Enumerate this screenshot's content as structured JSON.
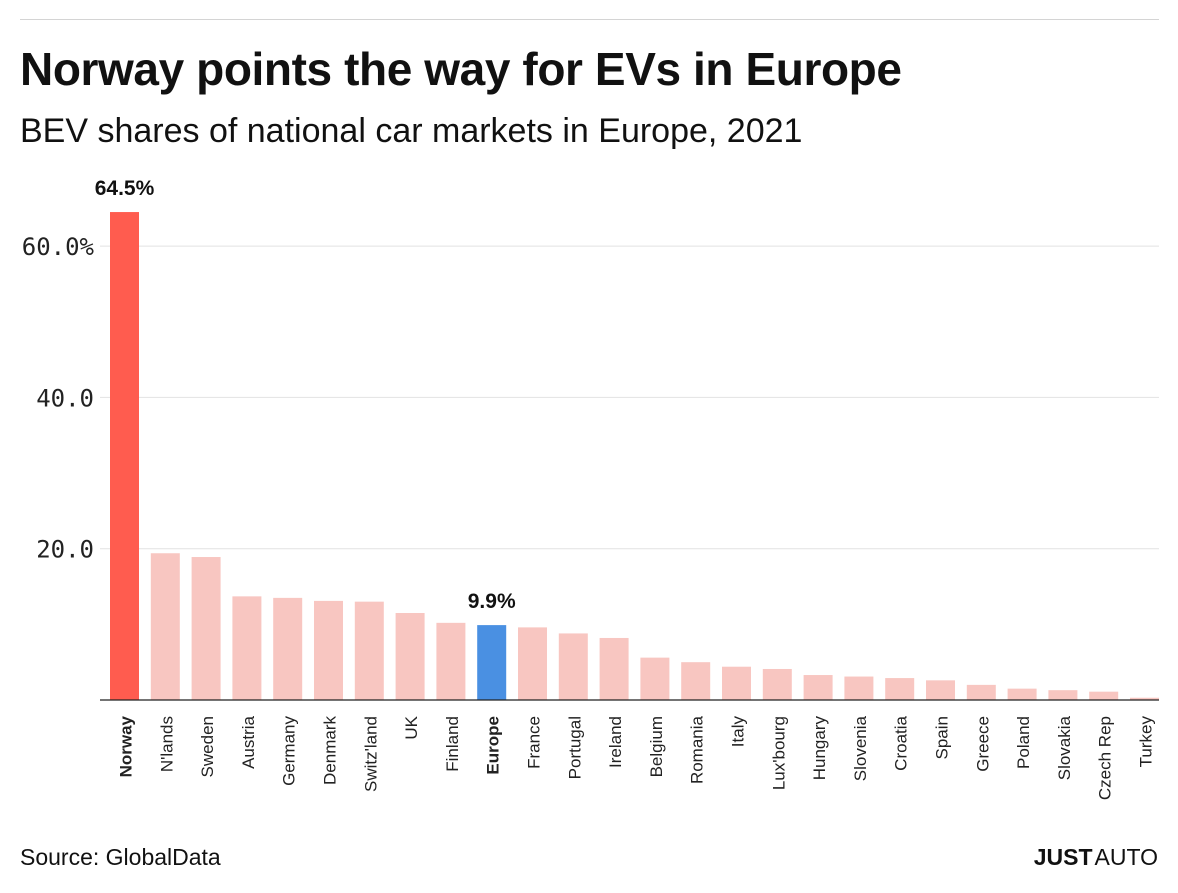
{
  "header": {
    "title": "Norway points the way for EVs in Europe",
    "subtitle": "BEV shares of national car markets in Europe, 2021"
  },
  "footer": {
    "source": "Source: GlobalData",
    "brand_bold": "JUST",
    "brand_regular": "AUTO"
  },
  "colors": {
    "highlight": "#ff5c4f",
    "default": "#f8c6c1",
    "europe": "#4a90e2",
    "grid": "#e2e2e2",
    "axis": "#222222"
  },
  "chart_data": {
    "type": "bar",
    "title": "Norway points the way for EVs in Europe",
    "subtitle": "BEV shares of national car markets in Europe, 2021",
    "xlabel": "",
    "ylabel": "",
    "ylim": [
      0,
      65
    ],
    "yticks": [
      20,
      40,
      60
    ],
    "ytick_labels": [
      "20.0",
      "40.0",
      "60.0%"
    ],
    "grid": true,
    "categories": [
      "Norway",
      "N'lands",
      "Sweden",
      "Austria",
      "Germany",
      "Denmark",
      "Switz'land",
      "UK",
      "Finland",
      "Europe",
      "France",
      "Portugal",
      "Ireland",
      "Belgium",
      "Romania",
      "Italy",
      "Lux'bourg",
      "Hungary",
      "Slovenia",
      "Croatia",
      "Spain",
      "Greece",
      "Poland",
      "Slovakia",
      "Czech Rep",
      "Turkey"
    ],
    "values": [
      64.5,
      19.4,
      18.9,
      13.7,
      13.5,
      13.1,
      13.0,
      11.5,
      10.2,
      9.9,
      9.6,
      8.8,
      8.2,
      5.6,
      5.0,
      4.4,
      4.1,
      3.3,
      3.1,
      2.9,
      2.6,
      2.0,
      1.5,
      1.3,
      1.1,
      0.3
    ],
    "highlight": [
      "Norway"
    ],
    "reference": [
      "Europe"
    ],
    "bold_labels": [
      "Norway",
      "Europe"
    ],
    "annotations": [
      {
        "category": "Norway",
        "text": "64.5%"
      },
      {
        "category": "Europe",
        "text": "9.9%"
      }
    ]
  }
}
